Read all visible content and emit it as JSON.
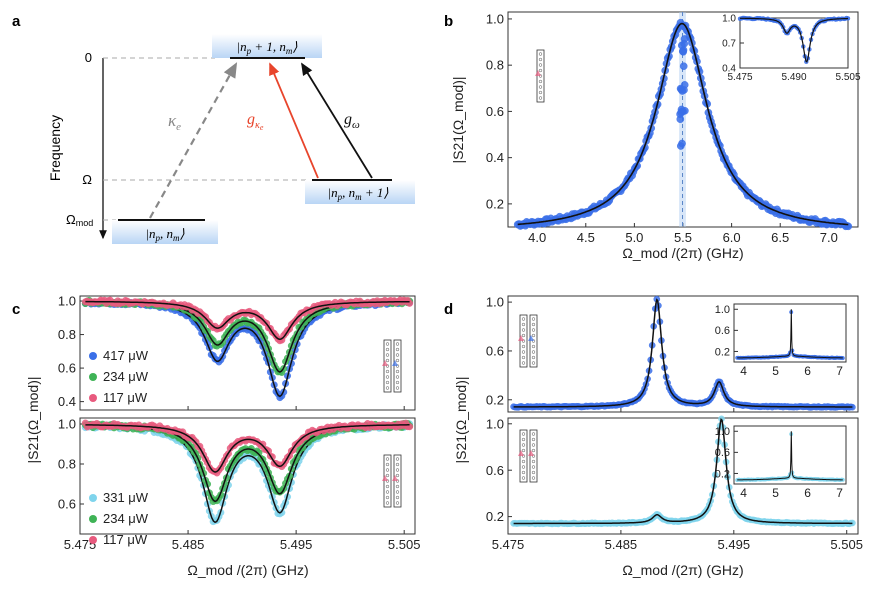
{
  "panels": {
    "a": {
      "label": "a",
      "y_axis_label": "Frequency",
      "levels": [
        {
          "name": "top",
          "tick": "0",
          "state": "|n_p + 1, n_m⟩"
        },
        {
          "name": "mid",
          "tick": "Ω",
          "state": "|n_p, n_m + 1⟩"
        },
        {
          "name": "low",
          "tick": "Ω_mod",
          "state": "|n_p, n_m⟩"
        }
      ],
      "transitions": [
        {
          "label": "κ_e",
          "color": "#888888",
          "style": "dashed"
        },
        {
          "label": "g_κe",
          "color": "#e8452c",
          "style": "solid"
        },
        {
          "label": "g_ω",
          "color": "#111111",
          "style": "solid"
        }
      ],
      "tick_mod_main": "Ω",
      "tick_mod_sub": "mod",
      "state_top": "|n",
      "state_mid": "|n",
      "state_low": "|n"
    },
    "b": {
      "label": "b"
    },
    "c": {
      "label": "c"
    },
    "d": {
      "label": "d"
    }
  },
  "chart_data": [
    {
      "id": "b",
      "type": "scatter",
      "title": "",
      "xlabel": "Ω_mod /(2π) (GHz)",
      "ylabel": "|S21(Ω_mod)|",
      "xlim": [
        3.7,
        7.3
      ],
      "ylim": [
        0.1,
        1.03
      ],
      "xticks": [
        "4.0",
        "4.5",
        "5.0",
        "5.5",
        "6.0",
        "6.5",
        "7.0"
      ],
      "yticks": [
        "0.2",
        "0.4",
        "0.6",
        "0.8",
        "1.0"
      ],
      "series": [
        {
          "name": "data",
          "color": "#3a6fe8",
          "x_range": [
            3.8,
            7.2
          ],
          "center": 5.49,
          "width": 0.32,
          "baseline": 0.08,
          "peak": 0.98
        }
      ],
      "highlight_band": [
        5.46,
        5.53
      ],
      "inset": {
        "xlim": [
          5.475,
          5.505
        ],
        "ylim": [
          0.4,
          1.0
        ],
        "xticks": [
          "5.475",
          "5.490",
          "5.505"
        ],
        "yticks": [
          "0.4",
          "0.7",
          "1.0"
        ],
        "dips": [
          {
            "x": 5.488,
            "depth": 0.16
          },
          {
            "x": 5.4935,
            "depth": 0.52
          }
        ]
      }
    },
    {
      "id": "c_top",
      "type": "scatter",
      "xlabel": "",
      "ylabel": "|S21(Ω_mod)|",
      "xlim": [
        5.475,
        5.506
      ],
      "ylim": [
        0.35,
        1.03
      ],
      "yticks": [
        "0.4",
        "0.6",
        "0.8",
        "1.0"
      ],
      "series": [
        {
          "name": "417 μW",
          "color": "#3a6fe8",
          "dips": [
            {
              "x": 5.4877,
              "depth": 0.33
            },
            {
              "x": 5.4935,
              "depth": 0.55
            }
          ]
        },
        {
          "name": "234 μW",
          "color": "#3fb356",
          "dips": [
            {
              "x": 5.4877,
              "depth": 0.24
            },
            {
              "x": 5.4935,
              "depth": 0.41
            }
          ]
        },
        {
          "name": "117 μW",
          "color": "#e85a7e",
          "dips": [
            {
              "x": 5.4877,
              "depth": 0.15
            },
            {
              "x": 5.4935,
              "depth": 0.22
            }
          ]
        }
      ]
    },
    {
      "id": "c_bottom",
      "type": "scatter",
      "xlabel": "Ω_mod /(2π) (GHz)",
      "ylabel": "",
      "xlim": [
        5.475,
        5.506
      ],
      "ylim": [
        0.45,
        1.03
      ],
      "xticks": [
        "5.475",
        "5.485",
        "5.495",
        "5.505"
      ],
      "yticks": [
        "0.6",
        "0.8",
        "1.0"
      ],
      "series": [
        {
          "name": "331 μW",
          "color": "#7fd4ec",
          "dips": [
            {
              "x": 5.4875,
              "depth": 0.47
            },
            {
              "x": 5.4935,
              "depth": 0.42
            }
          ]
        },
        {
          "name": "234 μW",
          "color": "#3fb356",
          "dips": [
            {
              "x": 5.4875,
              "depth": 0.37
            },
            {
              "x": 5.4935,
              "depth": 0.33
            }
          ]
        },
        {
          "name": "117 μW",
          "color": "#e85a7e",
          "dips": [
            {
              "x": 5.4875,
              "depth": 0.23
            },
            {
              "x": 5.4935,
              "depth": 0.2
            }
          ]
        }
      ]
    },
    {
      "id": "d_top",
      "type": "scatter",
      "ylabel": "|S21(Ω_mod)|",
      "xlim": [
        5.475,
        5.506
      ],
      "ylim": [
        0.1,
        1.05
      ],
      "yticks": [
        "0.2",
        "0.6",
        "1.0"
      ],
      "series": [
        {
          "name": "data",
          "color": "#3a6fe8",
          "peaks": [
            {
              "x": 5.4882,
              "height": 0.88
            },
            {
              "x": 5.4937,
              "height": 0.2
            }
          ]
        }
      ],
      "inset": {
        "xlim": [
          3.7,
          7.2
        ],
        "ylim": [
          0.0,
          1.1
        ],
        "xticks": [
          "4",
          "5",
          "6",
          "7"
        ],
        "yticks": [
          "0.2",
          "0.6",
          "1.0"
        ]
      }
    },
    {
      "id": "d_bottom",
      "type": "scatter",
      "xlabel": "Ω_mod /(2π) (GHz)",
      "ylabel": "",
      "xlim": [
        5.475,
        5.506
      ],
      "ylim": [
        0.05,
        1.05
      ],
      "xticks": [
        "5.475",
        "5.485",
        "5.495",
        "5.505"
      ],
      "yticks": [
        "0.2",
        "0.6",
        "1.0"
      ],
      "series": [
        {
          "name": "data",
          "color": "#7fd4ec",
          "peaks": [
            {
              "x": 5.4882,
              "height": 0.07
            },
            {
              "x": 5.4939,
              "height": 0.9
            }
          ]
        }
      ],
      "inset": {
        "xlim": [
          3.7,
          7.2
        ],
        "ylim": [
          0.0,
          1.1
        ],
        "xticks": [
          "4",
          "5",
          "6",
          "7"
        ],
        "yticks": [
          "0.2",
          "0.6",
          "1.0"
        ]
      }
    }
  ]
}
